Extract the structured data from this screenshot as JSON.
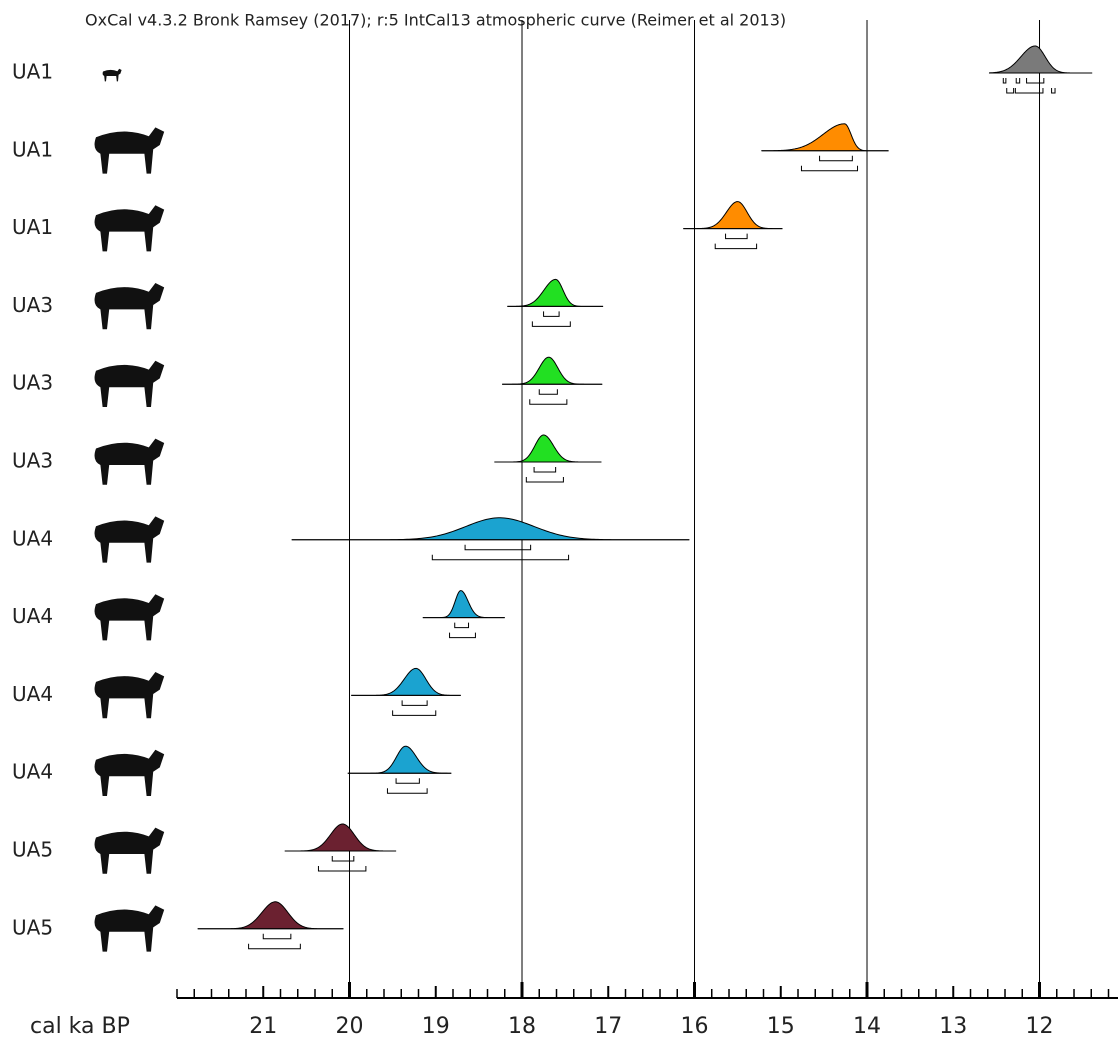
{
  "chart_data": {
    "type": "oxcal-multiplot",
    "title": "OxCal v4.3.2 Bronk Ramsey (2017); r:5 IntCal13 atmospheric curve (Reimer et al 2013)",
    "x_label": "cal ka BP",
    "xlim": [
      22,
      11.09
    ],
    "xticks": [
      21,
      20,
      19,
      18,
      17,
      16,
      15,
      14,
      13,
      12
    ],
    "major_xticks": [
      20,
      18,
      16,
      14,
      12
    ],
    "minor_tick_interval": 0.2,
    "grid": true,
    "rows": [
      {
        "label": "UA1",
        "color": "#7a7a7a",
        "mode": 12.05,
        "extent": [
          12.58,
          11.39
        ],
        "range_68": [
          [
            12.42,
            12.39
          ],
          [
            12.27,
            12.23
          ],
          [
            12.15,
            11.95
          ]
        ],
        "range_95": [
          [
            12.38,
            12.3
          ],
          [
            12.28,
            11.96
          ],
          [
            11.86,
            11.82
          ]
        ]
      },
      {
        "label": "UA1",
        "color": "#ff8c00",
        "mode": 14.26,
        "extent": [
          15.22,
          13.75
        ],
        "range_68": [
          [
            14.55,
            14.17
          ]
        ],
        "range_95": [
          [
            14.76,
            14.11
          ]
        ]
      },
      {
        "label": "UA1",
        "color": "#ff8c00",
        "mode": 15.5,
        "extent": [
          16.13,
          14.98
        ],
        "range_68": [
          [
            15.64,
            15.39
          ]
        ],
        "range_95": [
          [
            15.76,
            15.28
          ]
        ]
      },
      {
        "label": "UA3",
        "color": "#22e022",
        "mode": 17.61,
        "extent": [
          18.17,
          17.06
        ],
        "range_68": [
          [
            17.75,
            17.57
          ]
        ],
        "range_95": [
          [
            17.88,
            17.44
          ]
        ]
      },
      {
        "label": "UA3",
        "color": "#22e022",
        "mode": 17.69,
        "extent": [
          18.23,
          17.07
        ],
        "range_68": [
          [
            17.8,
            17.59
          ]
        ],
        "range_95": [
          [
            17.91,
            17.48
          ]
        ]
      },
      {
        "label": "UA3",
        "color": "#22e022",
        "mode": 17.75,
        "extent": [
          18.32,
          17.08
        ],
        "range_68": [
          [
            17.86,
            17.61
          ]
        ],
        "range_95": [
          [
            17.95,
            17.52
          ]
        ]
      },
      {
        "label": "UA4",
        "color": "#1ba3d0",
        "mode": 18.26,
        "extent": [
          20.67,
          16.06
        ],
        "range_68": [
          [
            18.66,
            17.9
          ]
        ],
        "range_95": [
          [
            19.04,
            17.46
          ]
        ]
      },
      {
        "label": "UA4",
        "color": "#1ba3d0",
        "mode": 18.71,
        "extent": [
          19.15,
          18.2
        ],
        "range_68": [
          [
            18.78,
            18.62
          ]
        ],
        "range_95": [
          [
            18.84,
            18.54
          ]
        ]
      },
      {
        "label": "UA4",
        "color": "#1ba3d0",
        "mode": 19.23,
        "extent": [
          19.98,
          18.71
        ],
        "range_68": [
          [
            19.39,
            19.1
          ]
        ],
        "range_95": [
          [
            19.5,
            19.0
          ]
        ]
      },
      {
        "label": "UA4",
        "color": "#1ba3d0",
        "mode": 19.35,
        "extent": [
          20.02,
          18.82
        ],
        "range_68": [
          [
            19.46,
            19.19
          ]
        ],
        "range_95": [
          [
            19.56,
            19.1
          ]
        ]
      },
      {
        "label": "UA5",
        "color": "#6b2130",
        "mode": 20.08,
        "extent": [
          20.75,
          19.46
        ],
        "range_68": [
          [
            20.2,
            19.95
          ]
        ],
        "range_95": [
          [
            20.36,
            19.81
          ]
        ]
      },
      {
        "label": "UA5",
        "color": "#6b2130",
        "mode": 20.86,
        "extent": [
          21.76,
          20.07
        ],
        "range_68": [
          [
            21.0,
            20.68
          ]
        ],
        "range_95": [
          [
            21.17,
            20.57
          ]
        ]
      }
    ]
  }
}
